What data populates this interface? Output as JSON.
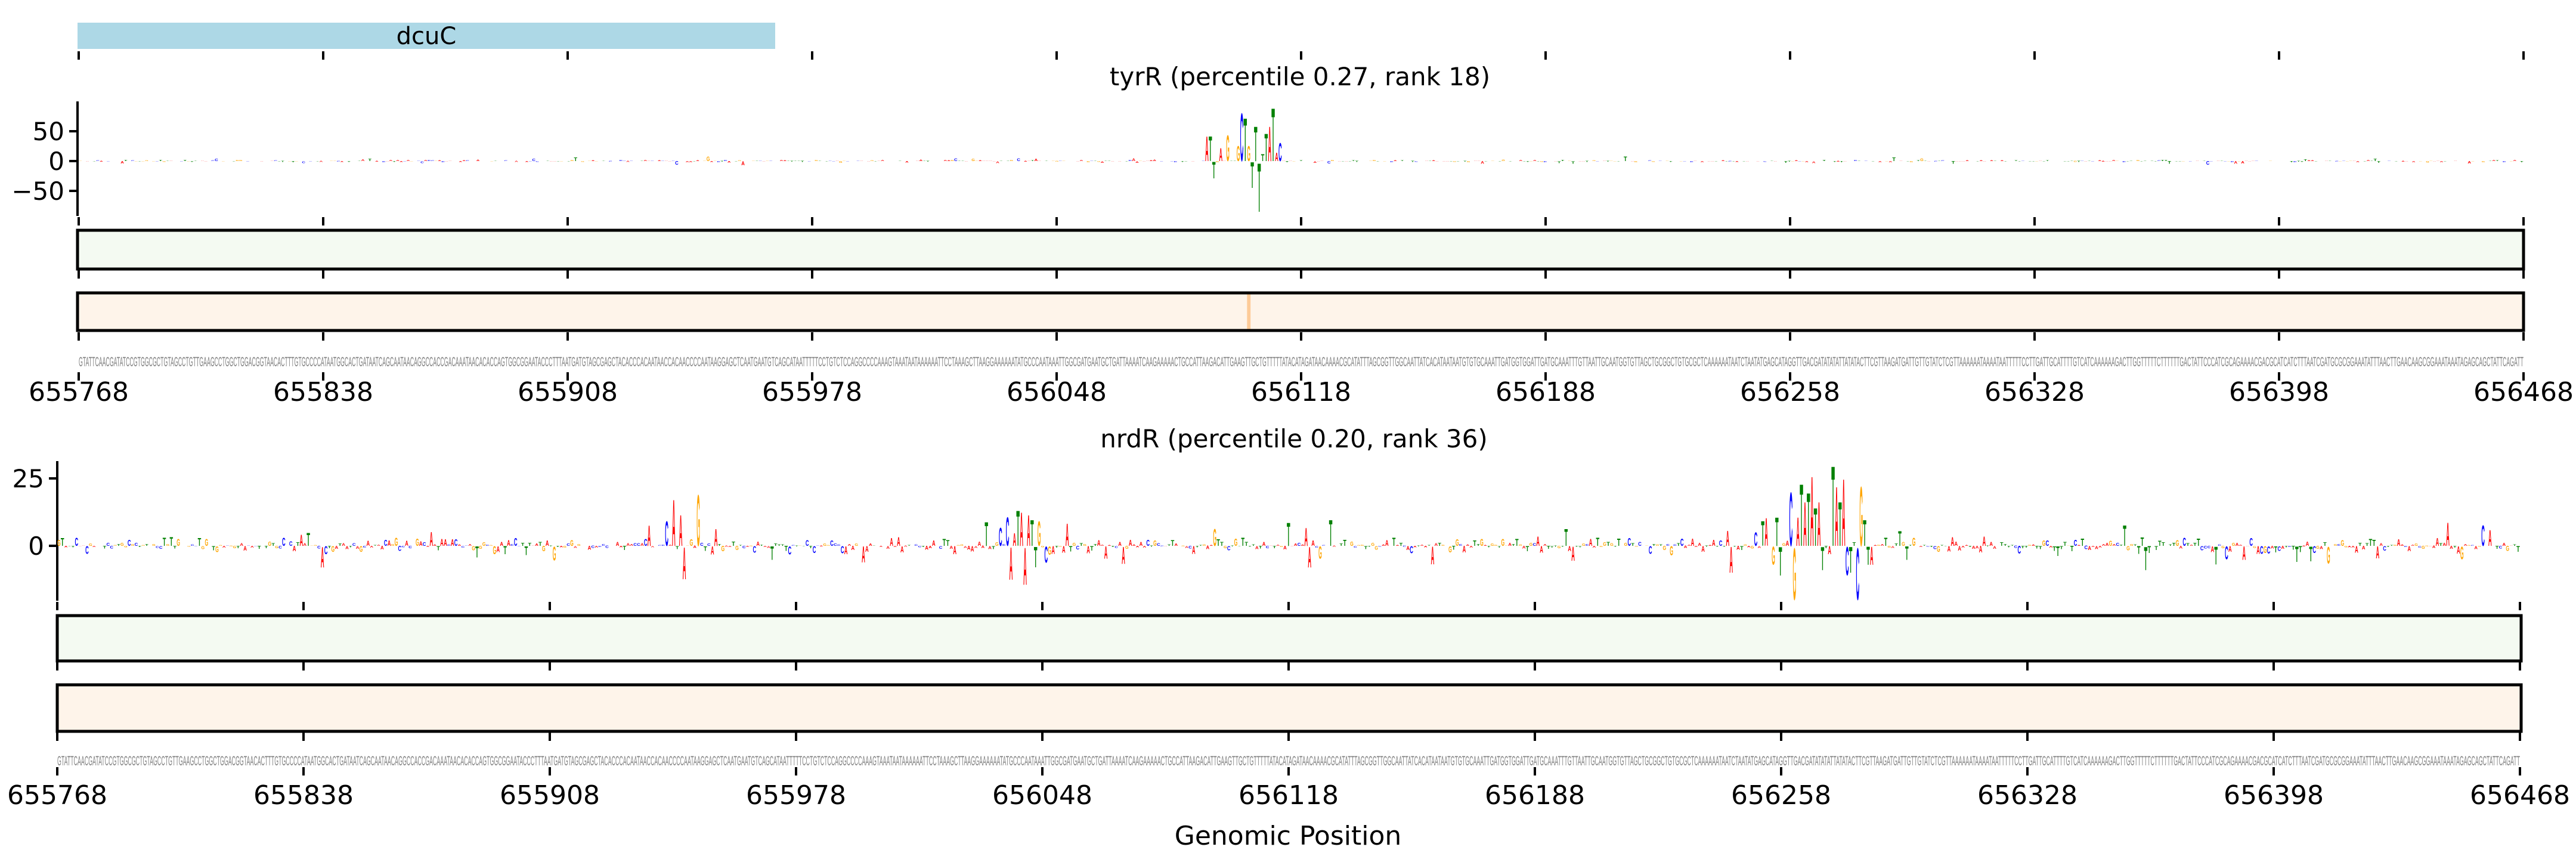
{
  "chart_data": {
    "type": "sequence-logo",
    "xlabel": "Genomic Position",
    "xlim": [
      655768,
      656468
    ],
    "xticks": [
      "655768",
      "655838",
      "655908",
      "655978",
      "656048",
      "656118",
      "656188",
      "656258",
      "656328",
      "656398",
      "656468"
    ],
    "gene": {
      "name": "dcuC",
      "start": 655768,
      "end": 655967,
      "color": "#add8e6"
    },
    "base_colors": {
      "A": "#ff0000",
      "C": "#0000ff",
      "G": "#ffa500",
      "T": "#008000"
    },
    "sequence": "GTATTCAACGATATCCGTGGCGCTGTAGCCTGTTGAAGCCTGGCTGGACGGTAACACTTTGTGCCCCATAATGGCACTGATAATCAGCAATAACAGGCCACCGACAAATAACACACCAGTGGCGGAATACCCTTTAATGATGTAGCGAGCTACACCCACAATAACCACAACCCCAATAAGGAGCTCAATGAATGTCAGCATAATTTTTCCTGTCTCCAGGCCCCAAAGTAAATAATAAAAAATTCCTAAAGCTTAAGGAAAAAATATGCCCAATAAATTGGCGATGAATGCTGATTAAAATCAAGAAAAACTGCCATTAAGACATTGAAGTTGCTGTTTTTATACATAGATAACAAAACGCATATTTAGCGGTTGGCAATTATCACATAATAATGTGTGCAAATTGATGGTGGATTGATGCAAATTTGTTAATTGCAATGGTGTTAGCTGCGGCTGTGCGCTCAAAAAATAATCTAATATGAGCATAGGTTGACGATATATATTATATACTTCGTTAAGATGATTGTTGTATCTCGTTAAAAAATAAAATAATTTTTCCTTGATTGCATTTTGTCATCAAAAAAGACTTGGTTTTTCTTTTTTGACTATTCCCATCGCAGAAAACGACGCATCATCTTTAATCGATGCGCGGAAATATTTAACTTGAACAAGCGGAAATAAATAGAGCAGCTATTCAGATT",
    "panels": [
      {
        "title": "tyrR (percentile 0.27, rank 18)",
        "yticks": [
          {
            "v": 50,
            "label": "50"
          },
          {
            "v": 0,
            "label": "0"
          },
          {
            "v": -50,
            "label": "−50"
          }
        ],
        "ylim": [
          -100,
          100
        ],
        "noise_amplitude": 2.2,
        "seed": 17,
        "peaks": [
          [
            142,
            6
          ],
          [
            171,
            -6
          ],
          [
            180,
            8
          ],
          [
            190,
            -7
          ],
          [
            323,
            43
          ],
          [
            324,
            43
          ],
          [
            325,
            -29
          ],
          [
            327,
            23
          ],
          [
            329,
            45
          ],
          [
            332,
            26
          ],
          [
            333,
            84
          ],
          [
            334,
            75
          ],
          [
            335,
            26
          ],
          [
            336,
            -45
          ],
          [
            337,
            61
          ],
          [
            338,
            -85
          ],
          [
            339,
            12
          ],
          [
            340,
            48
          ],
          [
            341,
            61
          ],
          [
            342,
            93
          ],
          [
            343,
            15
          ],
          [
            344,
            32
          ],
          [
            443,
            8
          ],
          [
            520,
            6
          ],
          [
            610,
            -6
          ]
        ],
        "track1": {
          "color": "#f4faf2",
          "highlights": []
        },
        "track2": {
          "color": "#fef4ea",
          "highlights": [
            {
              "index": 335,
              "color": "#fdcb98"
            }
          ]
        }
      },
      {
        "title": "nrdR (percentile 0.20, rank 36)",
        "yticks": [
          {
            "v": 25,
            "label": "25"
          },
          {
            "v": 0,
            "label": "0"
          }
        ],
        "ylim": [
          -20,
          31
        ],
        "noise_amplitude": 3.2,
        "seed": 91,
        "peaks": [
          [
            75,
            -8
          ],
          [
            168,
            8
          ],
          [
            173,
            9.5
          ],
          [
            175,
            18
          ],
          [
            177,
            12
          ],
          [
            178,
            -12.4
          ],
          [
            182,
            19.7
          ],
          [
            264,
            9.3
          ],
          [
            268,
            7
          ],
          [
            270,
            11
          ],
          [
            271,
            -12.5
          ],
          [
            273,
            13.6
          ],
          [
            274,
            13
          ],
          [
            275,
            -14.4
          ],
          [
            276,
            12
          ],
          [
            277,
            10
          ],
          [
            278,
            -8
          ],
          [
            279,
            9.6
          ],
          [
            287,
            8.6
          ],
          [
            350,
            9
          ],
          [
            356,
            -8
          ],
          [
            362,
            10
          ],
          [
            476,
            -10
          ],
          [
            485,
            9.5
          ],
          [
            486,
            10.7
          ],
          [
            488,
            -7
          ],
          [
            489,
            11
          ],
          [
            490,
            -11
          ],
          [
            493,
            20.8
          ],
          [
            494,
            -20
          ],
          [
            495,
            11
          ],
          [
            496,
            24
          ],
          [
            497,
            17
          ],
          [
            498,
            20.5
          ],
          [
            499,
            27
          ],
          [
            500,
            14.6
          ],
          [
            501,
            17
          ],
          [
            502,
            -9
          ],
          [
            505,
            31
          ],
          [
            506,
            23
          ],
          [
            507,
            17
          ],
          [
            508,
            26
          ],
          [
            509,
            -11
          ],
          [
            510,
            -10
          ],
          [
            512,
            -20
          ],
          [
            513,
            23
          ],
          [
            514,
            10
          ],
          [
            515,
            -7
          ],
          [
            516,
            -7
          ],
          [
            588,
            8
          ],
          [
            594,
            -9
          ],
          [
            680,
            9
          ],
          [
            684,
            -5
          ],
          [
            690,
            8
          ]
        ],
        "track1": {
          "color": "#f4faf2",
          "highlights": []
        },
        "track2": {
          "color": "#fef4ea",
          "highlights": []
        }
      }
    ]
  }
}
